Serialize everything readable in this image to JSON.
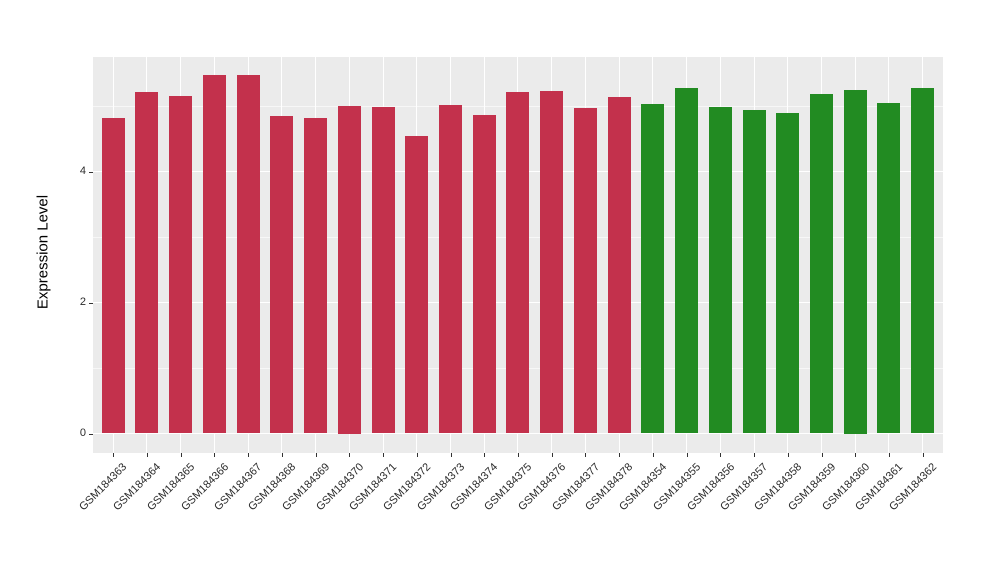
{
  "chart_data": {
    "type": "bar",
    "title": "",
    "xlabel": "",
    "ylabel": "Expression Level",
    "ylim": [
      0,
      5.75
    ],
    "yticks": [
      0,
      2,
      4
    ],
    "yticks_minor": [
      1,
      3,
      5
    ],
    "grid": "on",
    "legend": "none",
    "panel_bg": "#EBEBEB",
    "grid_color": "#FFFFFF",
    "tick_color": "#333333",
    "bar_colors": {
      "red": "#C3314C",
      "green": "#228B22"
    },
    "categories": [
      "GSM184363",
      "GSM184364",
      "GSM184365",
      "GSM184366",
      "GSM184367",
      "GSM184368",
      "GSM184369",
      "GSM184370",
      "GSM184371",
      "GSM184372",
      "GSM184373",
      "GSM184374",
      "GSM184375",
      "GSM184376",
      "GSM184377",
      "GSM184378",
      "GSM184354",
      "GSM184355",
      "GSM184356",
      "GSM184357",
      "GSM184358",
      "GSM184359",
      "GSM184360",
      "GSM184361",
      "GSM184362"
    ],
    "values": [
      4.81,
      5.22,
      5.15,
      5.48,
      5.48,
      4.84,
      4.81,
      5.0,
      4.99,
      4.54,
      5.01,
      4.86,
      5.21,
      5.23,
      4.97,
      5.13,
      5.03,
      5.27,
      4.99,
      4.94,
      4.9,
      5.19,
      5.25,
      5.04,
      5.27
    ],
    "groups": [
      "red",
      "red",
      "red",
      "red",
      "red",
      "red",
      "red",
      "red",
      "red",
      "red",
      "red",
      "red",
      "red",
      "red",
      "red",
      "red",
      "green",
      "green",
      "green",
      "green",
      "green",
      "green",
      "green",
      "green",
      "green"
    ]
  }
}
